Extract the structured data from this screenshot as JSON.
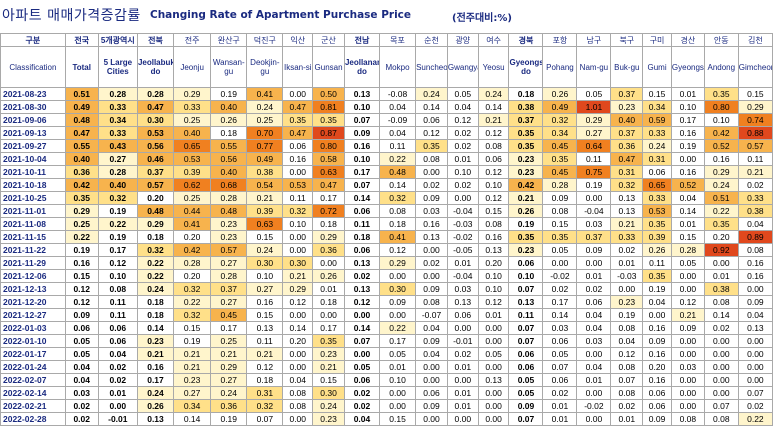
{
  "title": {
    "korean": "아파트 매매가격증감률",
    "english": "Changing Rate of Apartment Purchase Price",
    "unit": "(전주대비:%)"
  },
  "columns": [
    {
      "ko": "전국",
      "en": "Total",
      "bold": true
    },
    {
      "ko": "5개광역시",
      "en": "5 Large Cities",
      "bold": true
    },
    {
      "ko": "전북",
      "en": "Jeollabuk-do",
      "bold": true
    },
    {
      "ko": "전주",
      "en": "Jeonju",
      "bold": false
    },
    {
      "ko": "완산구",
      "en": "Wansan-gu",
      "bold": false
    },
    {
      "ko": "덕진구",
      "en": "Deokjin-gu",
      "bold": false
    },
    {
      "ko": "익산",
      "en": "Iksan-si",
      "bold": false
    },
    {
      "ko": "군산",
      "en": "Gunsan",
      "bold": false
    },
    {
      "ko": "전남",
      "en": "Jeollanam-do",
      "bold": true
    },
    {
      "ko": "목포",
      "en": "Mokpo",
      "bold": false
    },
    {
      "ko": "순천",
      "en": "Suncheon",
      "bold": false
    },
    {
      "ko": "광양",
      "en": "Gwangyang",
      "bold": false
    },
    {
      "ko": "여수",
      "en": "Yeosu",
      "bold": false
    },
    {
      "ko": "경북",
      "en": "Gyeongsangbuk-do",
      "bold": true
    },
    {
      "ko": "포항",
      "en": "Pohang",
      "bold": false
    },
    {
      "ko": "남구",
      "en": "Nam-gu",
      "bold": false
    },
    {
      "ko": "북구",
      "en": "Buk-gu",
      "bold": false
    },
    {
      "ko": "구미",
      "en": "Gumi",
      "bold": false
    },
    {
      "ko": "경산",
      "en": "Gyeongsan",
      "bold": false
    },
    {
      "ko": "안동",
      "en": "Andong",
      "bold": false
    },
    {
      "ko": "김천",
      "en": "Gimcheon",
      "bold": false
    }
  ],
  "header": {
    "group_ko": "구분",
    "group_en": "Classification"
  },
  "rows": [
    {
      "date": "2021-08-23",
      "values": [
        "0.51",
        "0.28",
        "0.28",
        "0.29",
        "0.19",
        "0.41",
        "0.00",
        "0.50",
        "0.13",
        "-0.08",
        "0.24",
        "0.05",
        "0.24",
        "0.18",
        "0.26",
        "0.05",
        "0.37",
        "0.15",
        "0.01",
        "0.35",
        "0.15"
      ]
    },
    {
      "date": "2021-08-30",
      "values": [
        "0.49",
        "0.33",
        "0.47",
        "0.33",
        "0.40",
        "0.24",
        "0.47",
        "0.81",
        "0.10",
        "0.04",
        "0.14",
        "0.04",
        "0.14",
        "0.38",
        "0.49",
        "1.01",
        "0.23",
        "0.34",
        "0.10",
        "0.80",
        "0.29"
      ]
    },
    {
      "date": "2021-09-06",
      "values": [
        "0.48",
        "0.34",
        "0.30",
        "0.25",
        "0.26",
        "0.25",
        "0.35",
        "0.35",
        "0.07",
        "-0.09",
        "0.06",
        "0.12",
        "0.21",
        "0.37",
        "0.32",
        "0.29",
        "0.40",
        "0.59",
        "0.17",
        "0.10",
        "0.74"
      ]
    },
    {
      "date": "2021-09-13",
      "values": [
        "0.47",
        "0.33",
        "0.53",
        "0.40",
        "0.18",
        "0.70",
        "0.47",
        "0.87",
        "0.09",
        "0.04",
        "0.12",
        "0.02",
        "0.12",
        "0.35",
        "0.34",
        "0.27",
        "0.37",
        "0.33",
        "0.16",
        "0.42",
        "0.88"
      ]
    },
    {
      "date": "2021-09-27",
      "values": [
        "0.55",
        "0.43",
        "0.56",
        "0.65",
        "0.55",
        "0.77",
        "0.06",
        "0.80",
        "0.16",
        "0.11",
        "0.35",
        "0.02",
        "0.08",
        "0.35",
        "0.45",
        "0.64",
        "0.36",
        "0.24",
        "0.19",
        "0.52",
        "0.57"
      ]
    },
    {
      "date": "2021-10-04",
      "values": [
        "0.40",
        "0.27",
        "0.46",
        "0.53",
        "0.56",
        "0.49",
        "0.16",
        "0.58",
        "0.10",
        "0.22",
        "0.08",
        "0.01",
        "0.06",
        "0.23",
        "0.35",
        "0.11",
        "0.47",
        "0.31",
        "0.00",
        "0.16",
        "0.11"
      ]
    },
    {
      "date": "2021-10-11",
      "values": [
        "0.36",
        "0.28",
        "0.37",
        "0.39",
        "0.40",
        "0.38",
        "0.00",
        "0.63",
        "0.17",
        "0.48",
        "0.00",
        "0.10",
        "0.12",
        "0.23",
        "0.45",
        "0.75",
        "0.31",
        "0.06",
        "0.16",
        "0.29",
        "0.21"
      ]
    },
    {
      "date": "2021-10-18",
      "values": [
        "0.42",
        "0.40",
        "0.57",
        "0.62",
        "0.68",
        "0.54",
        "0.53",
        "0.47",
        "0.07",
        "0.14",
        "0.02",
        "0.02",
        "0.10",
        "0.42",
        "0.28",
        "0.19",
        "0.32",
        "0.65",
        "0.52",
        "0.24",
        "0.02"
      ]
    },
    {
      "date": "2021-10-25",
      "values": [
        "0.35",
        "0.32",
        "0.20",
        "0.25",
        "0.28",
        "0.21",
        "0.11",
        "0.17",
        "0.14",
        "0.32",
        "0.09",
        "0.00",
        "0.12",
        "0.21",
        "0.09",
        "0.00",
        "0.13",
        "0.33",
        "0.04",
        "0.51",
        "0.33"
      ]
    },
    {
      "date": "2021-11-01",
      "values": [
        "0.29",
        "0.19",
        "0.48",
        "0.44",
        "0.48",
        "0.39",
        "0.32",
        "0.72",
        "0.06",
        "0.08",
        "0.03",
        "-0.04",
        "0.15",
        "0.26",
        "0.08",
        "-0.04",
        "0.13",
        "0.53",
        "0.14",
        "0.22",
        "0.38"
      ]
    },
    {
      "date": "2021-11-08",
      "values": [
        "0.25",
        "0.22",
        "0.29",
        "0.41",
        "0.23",
        "0.63",
        "0.10",
        "0.18",
        "0.11",
        "0.18",
        "0.16",
        "-0.03",
        "0.08",
        "0.19",
        "0.15",
        "0.03",
        "0.21",
        "0.35",
        "0.01",
        "0.35",
        "0.04"
      ]
    },
    {
      "date": "2021-11-15",
      "values": [
        "0.22",
        "0.19",
        "0.18",
        "0.20",
        "0.23",
        "0.15",
        "0.00",
        "0.29",
        "0.18",
        "0.41",
        "0.13",
        "-0.02",
        "0.16",
        "0.35",
        "0.35",
        "0.37",
        "0.33",
        "0.39",
        "0.15",
        "0.20",
        "0.89"
      ]
    },
    {
      "date": "2021-11-22",
      "values": [
        "0.19",
        "0.17",
        "0.32",
        "0.42",
        "0.57",
        "0.24",
        "0.00",
        "0.36",
        "0.06",
        "0.12",
        "0.00",
        "-0.05",
        "0.13",
        "0.23",
        "0.05",
        "0.09",
        "0.02",
        "0.26",
        "0.28",
        "0.92",
        "0.08"
      ]
    },
    {
      "date": "2021-11-29",
      "values": [
        "0.16",
        "0.12",
        "0.22",
        "0.28",
        "0.27",
        "0.30",
        "0.30",
        "0.00",
        "0.13",
        "0.29",
        "0.02",
        "0.01",
        "0.20",
        "0.06",
        "0.00",
        "0.00",
        "0.01",
        "0.11",
        "0.05",
        "0.00",
        "0.16"
      ]
    },
    {
      "date": "2021-12-06",
      "values": [
        "0.15",
        "0.10",
        "0.22",
        "0.20",
        "0.28",
        "0.10",
        "0.21",
        "0.26",
        "0.02",
        "0.00",
        "0.00",
        "-0.04",
        "0.10",
        "0.10",
        "-0.02",
        "0.01",
        "-0.03",
        "0.35",
        "0.00",
        "0.01",
        "0.16"
      ]
    },
    {
      "date": "2021-12-13",
      "values": [
        "0.12",
        "0.08",
        "0.24",
        "0.32",
        "0.37",
        "0.27",
        "0.29",
        "0.01",
        "0.13",
        "0.30",
        "0.09",
        "0.03",
        "0.10",
        "0.07",
        "0.02",
        "0.02",
        "0.00",
        "0.19",
        "0.00",
        "0.38",
        "0.00"
      ]
    },
    {
      "date": "2021-12-20",
      "values": [
        "0.12",
        "0.11",
        "0.18",
        "0.22",
        "0.27",
        "0.16",
        "0.12",
        "0.18",
        "0.12",
        "0.09",
        "0.08",
        "0.13",
        "0.12",
        "0.13",
        "0.17",
        "0.06",
        "0.23",
        "0.04",
        "0.12",
        "0.08",
        "0.09"
      ]
    },
    {
      "date": "2021-12-27",
      "values": [
        "0.09",
        "0.11",
        "0.18",
        "0.32",
        "0.45",
        "0.15",
        "0.00",
        "0.00",
        "0.00",
        "0.00",
        "-0.07",
        "0.06",
        "0.01",
        "0.11",
        "0.14",
        "0.04",
        "0.19",
        "0.00",
        "0.21",
        "0.14",
        "0.04"
      ]
    },
    {
      "date": "2022-01-03",
      "values": [
        "0.06",
        "0.06",
        "0.14",
        "0.15",
        "0.17",
        "0.13",
        "0.14",
        "0.17",
        "0.14",
        "0.22",
        "0.04",
        "0.00",
        "0.00",
        "0.07",
        "0.03",
        "0.04",
        "0.08",
        "0.16",
        "0.09",
        "0.02",
        "0.13"
      ]
    },
    {
      "date": "2022-01-10",
      "values": [
        "0.05",
        "0.06",
        "0.23",
        "0.19",
        "0.25",
        "0.11",
        "0.20",
        "0.35",
        "0.07",
        "0.17",
        "0.09",
        "-0.01",
        "0.00",
        "0.07",
        "0.06",
        "0.03",
        "0.04",
        "0.09",
        "0.00",
        "0.00",
        "0.00"
      ]
    },
    {
      "date": "2022-01-17",
      "values": [
        "0.05",
        "0.04",
        "0.21",
        "0.21",
        "0.21",
        "0.21",
        "0.00",
        "0.23",
        "0.00",
        "0.05",
        "0.04",
        "0.02",
        "0.05",
        "0.06",
        "0.05",
        "0.00",
        "0.12",
        "0.16",
        "0.00",
        "0.00",
        "0.00"
      ]
    },
    {
      "date": "2022-01-24",
      "values": [
        "0.04",
        "0.02",
        "0.16",
        "0.21",
        "0.29",
        "0.12",
        "0.00",
        "0.21",
        "0.05",
        "0.01",
        "0.00",
        "0.01",
        "0.00",
        "0.06",
        "0.07",
        "0.04",
        "0.08",
        "0.20",
        "0.03",
        "0.00",
        "0.00"
      ]
    },
    {
      "date": "2022-02-07",
      "values": [
        "0.04",
        "0.02",
        "0.17",
        "0.23",
        "0.27",
        "0.18",
        "0.04",
        "0.15",
        "0.06",
        "0.10",
        "0.00",
        "0.00",
        "0.13",
        "0.05",
        "0.06",
        "0.01",
        "0.07",
        "0.16",
        "0.00",
        "0.00",
        "0.00"
      ]
    },
    {
      "date": "2022-02-14",
      "values": [
        "0.03",
        "0.01",
        "0.24",
        "0.27",
        "0.24",
        "0.31",
        "0.08",
        "0.30",
        "0.02",
        "0.00",
        "0.06",
        "0.01",
        "0.00",
        "0.05",
        "0.02",
        "0.00",
        "0.08",
        "0.06",
        "0.00",
        "0.00",
        "0.07"
      ]
    },
    {
      "date": "2022-02-21",
      "values": [
        "0.02",
        "0.00",
        "0.26",
        "0.34",
        "0.36",
        "0.32",
        "0.08",
        "0.24",
        "0.02",
        "0.00",
        "0.09",
        "0.01",
        "0.00",
        "0.09",
        "0.01",
        "-0.02",
        "0.02",
        "0.06",
        "0.00",
        "0.07",
        "0.02"
      ]
    },
    {
      "date": "2022-02-28",
      "values": [
        "0.02",
        "-0.01",
        "0.13",
        "0.14",
        "0.19",
        "0.07",
        "0.00",
        "0.23",
        "0.04",
        "0.15",
        "0.00",
        "0.00",
        "0.00",
        "0.07",
        "0.01",
        "0.00",
        "0.01",
        "0.09",
        "0.08",
        "0.08",
        "0.22"
      ]
    }
  ],
  "colors": {
    "title": "#1a2a80",
    "grid": "#a9a9a9",
    "level_0": "#ffffff",
    "level_1": "#fff5cc",
    "level_2": "#ffe089",
    "level_3": "#f7b34d",
    "level_4": "#f08020",
    "level_5": "#e0481d"
  }
}
